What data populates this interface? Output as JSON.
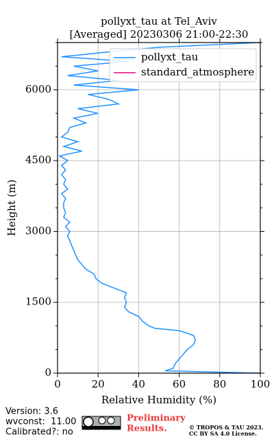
{
  "chart_data": {
    "type": "profile",
    "title": "pollyxt_tau at Tel_Aviv",
    "subtitle": "[Averaged] 20230306 21:00-22:30",
    "x_label": "Relative Humidity (%)",
    "y_label": "Height (m)",
    "xlim": [
      0,
      100
    ],
    "xticks": [
      0,
      20,
      40,
      60,
      80,
      100
    ],
    "ylim": [
      0,
      7000
    ],
    "yticks": [
      0,
      1500,
      3000,
      4500,
      6000
    ],
    "yminorticks": [
      500,
      1000,
      2000,
      2500,
      3500,
      4000,
      5000,
      5500,
      6500,
      7000
    ],
    "grid": true,
    "legend": "upper right",
    "y": [
      0,
      50,
      100,
      200,
      300,
      400,
      500,
      600,
      700,
      800,
      900,
      950,
      1000,
      1100,
      1200,
      1300,
      1400,
      1500,
      1600,
      1700,
      1800,
      1900,
      2000,
      2100,
      2200,
      2300,
      2400,
      2500,
      2600,
      2700,
      2800,
      2900,
      3000,
      3100,
      3200,
      3300,
      3400,
      3500,
      3600,
      3700,
      3800,
      3900,
      4000,
      4100,
      4200,
      4300,
      4400,
      4500,
      4600,
      4700,
      4800,
      4900,
      5000,
      5100,
      5200,
      5300,
      5400,
      5500,
      5600,
      5700,
      5800,
      5900,
      6000,
      6100,
      6200,
      6300,
      6400,
      6500,
      6600,
      6700,
      6800,
      6900,
      7000
    ],
    "series": [
      {
        "name": "pollyxt_tau",
        "color": "#1e90ff",
        "values": [
          100,
          53,
          57,
          58,
          60,
          62,
          64,
          67,
          68,
          67,
          60,
          48,
          45,
          42,
          40,
          35,
          33,
          34,
          33,
          34,
          28,
          22,
          19,
          18,
          14,
          12,
          10,
          9,
          8,
          7,
          6,
          5,
          6,
          4,
          6,
          3,
          4,
          3,
          3,
          4,
          2,
          5,
          3,
          4,
          2,
          4,
          2,
          5,
          1,
          12,
          3,
          10,
          2,
          5,
          6,
          14,
          8,
          20,
          10,
          30,
          25,
          15,
          40,
          8,
          30,
          5,
          20,
          8,
          35,
          2,
          25,
          50,
          100
        ]
      },
      {
        "name": "standard_atmosphere",
        "color": "#e6007e",
        "values": [
          null,
          null,
          null,
          null,
          null,
          null,
          null,
          null,
          null,
          null,
          null,
          null,
          null,
          null,
          null,
          null,
          null,
          null,
          null,
          null,
          null,
          null,
          null,
          null,
          null,
          null,
          null,
          null,
          null,
          null,
          null,
          null,
          null,
          null,
          null,
          null,
          null,
          null,
          null,
          null,
          null,
          null,
          null,
          null,
          null,
          null,
          null,
          null,
          null,
          null,
          null,
          null,
          null,
          null,
          null,
          null,
          null,
          null,
          null,
          null,
          null,
          null,
          null,
          null,
          null,
          null,
          null,
          null,
          null,
          null,
          null,
          null,
          null
        ]
      }
    ]
  },
  "footer": {
    "version": "Version: 3.6",
    "wvconst": "wvconst:  11.00",
    "calibrated": "Calibrated?: no",
    "preliminary": "Preliminary",
    "results": "Results.",
    "copyright": "© TROPOS & TAU 2023.",
    "license": "CC BY SA 4.0 License."
  }
}
